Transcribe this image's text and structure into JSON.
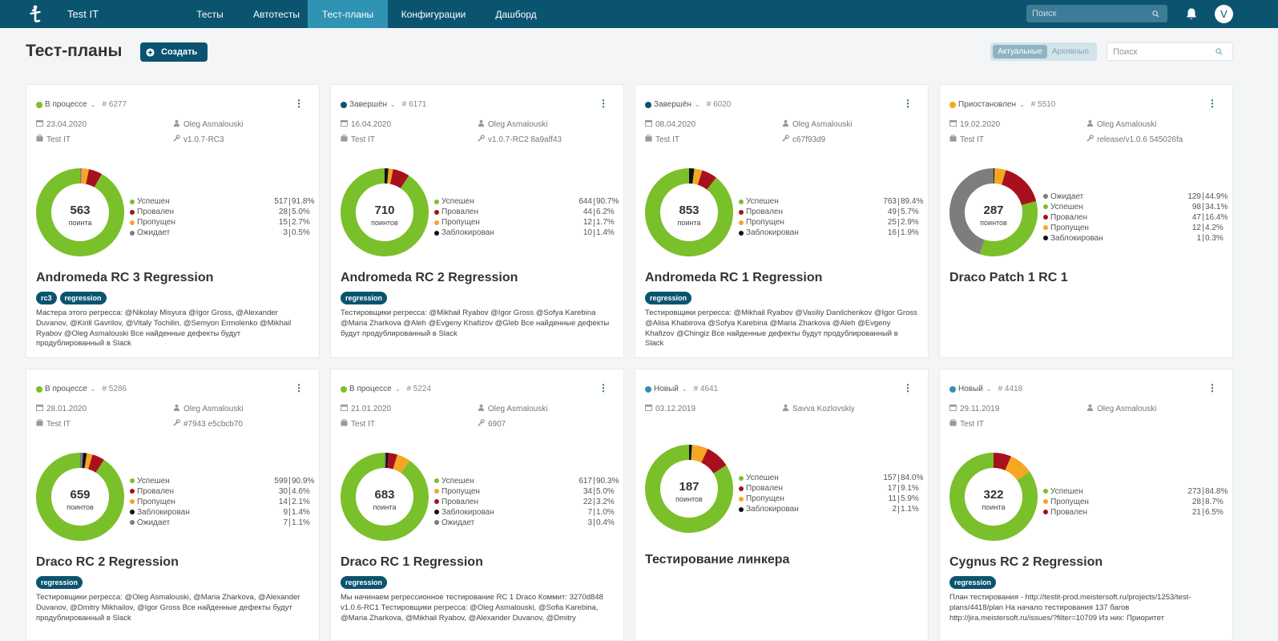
{
  "nav": {
    "brand": "Test IT",
    "items": [
      "Тесты",
      "Автотесты",
      "Тест-планы",
      "Конфигурации",
      "Дашборд"
    ],
    "active_index": 2,
    "search_placeholder": "Поиск",
    "avatar_letter": "V"
  },
  "page": {
    "title": "Тест-планы",
    "create_label": "Создать",
    "toggle": [
      "Актуальные",
      "Архивные"
    ],
    "search_placeholder": "Поиск"
  },
  "colors": {
    "primary": "#0b5470",
    "active_tab": "#2f93b3",
    "passed": "#7ac02b",
    "failed": "#a8101e",
    "skipped": "#f5a623",
    "blocked": "#111111",
    "waiting": "#7d7d7d",
    "status_in_progress": "#7ac02b",
    "status_done": "#0b5470",
    "status_paused": "#f5a623",
    "status_new": "#2f93b3"
  },
  "cards": [
    {
      "status": "В процессе",
      "status_color": "#7ac02b",
      "number": "# 6277",
      "date": "23.04.2020",
      "author": "Oleg Asmalouski",
      "project": "Test IT",
      "build": "v1.0.7-RC3",
      "total": "563",
      "unit": "поинта",
      "stats": [
        {
          "label": "Успешен",
          "count": "517",
          "pct": "91.8%",
          "color": "#7ac02b",
          "value": 517
        },
        {
          "label": "Провален",
          "count": "28",
          "pct": "5.0%",
          "color": "#a8101e",
          "value": 28
        },
        {
          "label": "Пропущен",
          "count": "15",
          "pct": "2.7%",
          "color": "#f5a623",
          "value": 15
        },
        {
          "label": "Ожидает",
          "count": "3",
          "pct": "0.5%",
          "color": "#7d7d7d",
          "value": 3
        }
      ],
      "title": "Andromeda RC 3 Regression",
      "tags": [
        "rc3",
        "regression"
      ],
      "description": "Мастера этого регресса: @Nikolay Misyura @Igor Gross, @Alexander Duvanov, @Kirill Gavrilov, @Vitaly Tochilin, @Semyon Ermolenko @Mikhail Ryabov @Oleg Asmalouski Все найденные дефекты будут продублированный в Slack"
    },
    {
      "status": "Завершён",
      "status_color": "#0b5470",
      "number": "# 6171",
      "date": "16.04.2020",
      "author": "Oleg Asmalouski",
      "project": "Test IT",
      "build": "v1.0.7-RC2 8a9aff43",
      "total": "710",
      "unit": "поинтов",
      "stats": [
        {
          "label": "Успешен",
          "count": "644",
          "pct": "90.7%",
          "color": "#7ac02b",
          "value": 644
        },
        {
          "label": "Провален",
          "count": "44",
          "pct": "6.2%",
          "color": "#a8101e",
          "value": 44
        },
        {
          "label": "Пропущен",
          "count": "12",
          "pct": "1.7%",
          "color": "#f5a623",
          "value": 12
        },
        {
          "label": "Заблокирован",
          "count": "10",
          "pct": "1.4%",
          "color": "#111111",
          "value": 10
        }
      ],
      "title": "Andromeda RC 2 Regression",
      "tags": [
        "regression"
      ],
      "description": "Тестировщики регресса: @Mikhail Ryabov @Igor Gross @Sofya Karebina @Maria Zharkova @Aleh @Evgeny Khafizov @Gleb Все найденные дефекты будут продублированный в Slack"
    },
    {
      "status": "Завершён",
      "status_color": "#0b5470",
      "number": "# 6020",
      "date": "08.04.2020",
      "author": "Oleg Asmalouski",
      "project": "Test IT",
      "build": "c67f93d9",
      "total": "853",
      "unit": "поинта",
      "stats": [
        {
          "label": "Успешен",
          "count": "763",
          "pct": "89.4%",
          "color": "#7ac02b",
          "value": 763
        },
        {
          "label": "Провален",
          "count": "49",
          "pct": "5.7%",
          "color": "#a8101e",
          "value": 49
        },
        {
          "label": "Пропущен",
          "count": "25",
          "pct": "2.9%",
          "color": "#f5a623",
          "value": 25
        },
        {
          "label": "Заблокирован",
          "count": "16",
          "pct": "1.9%",
          "color": "#111111",
          "value": 16
        }
      ],
      "title": "Andromeda RC 1 Regression",
      "tags": [
        "regression"
      ],
      "description": "Тестировщики регресса: @Mikhail Ryabov @Vasiliy Danilchenkov @Igor Gross @Alisa Khabirova @Sofya Karebina @Maria Zharkova @Aleh @Evgeny Khafizov @Chingiz Все найденные дефекты будут продублированный в Slack"
    },
    {
      "status": "Приостановлен",
      "status_color": "#f5a623",
      "number": "# 5510",
      "date": "19.02.2020",
      "author": "Oleg Asmalouski",
      "project": "Test IT",
      "build": "release/v1.0.6 545026fa",
      "total": "287",
      "unit": "поинтов",
      "stats": [
        {
          "label": "Ожидает",
          "count": "129",
          "pct": "44.9%",
          "color": "#7d7d7d",
          "value": 129
        },
        {
          "label": "Успешен",
          "count": "98",
          "pct": "34.1%",
          "color": "#7ac02b",
          "value": 98
        },
        {
          "label": "Провален",
          "count": "47",
          "pct": "16.4%",
          "color": "#a8101e",
          "value": 47
        },
        {
          "label": "Пропущен",
          "count": "12",
          "pct": "4.2%",
          "color": "#f5a623",
          "value": 12
        },
        {
          "label": "Заблокирован",
          "count": "1",
          "pct": "0.3%",
          "color": "#111111",
          "value": 1
        }
      ],
      "title": "Draco Patch 1 RC 1",
      "tags": [],
      "description": ""
    },
    {
      "status": "В процессе",
      "status_color": "#7ac02b",
      "number": "# 5286",
      "date": "28.01.2020",
      "author": "Oleg Asmalouski",
      "project": "Test IT",
      "build": "#7943 e5cbcb70",
      "total": "659",
      "unit": "поинтов",
      "stats": [
        {
          "label": "Успешен",
          "count": "599",
          "pct": "90.9%",
          "color": "#7ac02b",
          "value": 599
        },
        {
          "label": "Провален",
          "count": "30",
          "pct": "4.6%",
          "color": "#a8101e",
          "value": 30
        },
        {
          "label": "Пропущен",
          "count": "14",
          "pct": "2.1%",
          "color": "#f5a623",
          "value": 14
        },
        {
          "label": "Заблокирован",
          "count": "9",
          "pct": "1.4%",
          "color": "#111111",
          "value": 9
        },
        {
          "label": "Ожидает",
          "count": "7",
          "pct": "1.1%",
          "color": "#7d7d7d",
          "value": 7
        }
      ],
      "title": "Draco RC 2 Regression",
      "tags": [
        "regression"
      ],
      "description": "Тестировщики регресса: @Oleg Asmalouski, @Maria Zharkova, @Alexander Duvanov, @Dmitry Mikhailov, @Igor Gross Все найденные дефекты будут продублированный в Slack"
    },
    {
      "status": "В процессе",
      "status_color": "#7ac02b",
      "number": "# 5224",
      "date": "21.01.2020",
      "author": "Oleg Asmalouski",
      "project": "Test IT",
      "build": "6907",
      "total": "683",
      "unit": "поинта",
      "stats": [
        {
          "label": "Успешен",
          "count": "617",
          "pct": "90.3%",
          "color": "#7ac02b",
          "value": 617
        },
        {
          "label": "Пропущен",
          "count": "34",
          "pct": "5.0%",
          "color": "#f5a623",
          "value": 34
        },
        {
          "label": "Провален",
          "count": "22",
          "pct": "3.2%",
          "color": "#a8101e",
          "value": 22
        },
        {
          "label": "Заблокирован",
          "count": "7",
          "pct": "1.0%",
          "color": "#111111",
          "value": 7
        },
        {
          "label": "Ожидает",
          "count": "3",
          "pct": "0.4%",
          "color": "#7d7d7d",
          "value": 3
        }
      ],
      "title": "Draco RC 1 Regression",
      "tags": [
        "regression"
      ],
      "description": "Мы начинаем регрессионное тестирование RC 1 Draco Коммит: 3270d848 v1.0.6-RC1 Тестировщики регресса: @Oleg Asmalouski, @Sofia Karebina, @Maria Zharkova, @Mikhail Ryabov, @Alexander Duvanov, @Dmitry"
    },
    {
      "status": "Новый",
      "status_color": "#2f93b3",
      "number": "# 4641",
      "date": "03.12.2019",
      "author": "Savva Kozlovskiy",
      "project": "",
      "build": "",
      "total": "187",
      "unit": "поинтов",
      "stats": [
        {
          "label": "Успешен",
          "count": "157",
          "pct": "84.0%",
          "color": "#7ac02b",
          "value": 157
        },
        {
          "label": "Провален",
          "count": "17",
          "pct": "9.1%",
          "color": "#a8101e",
          "value": 17
        },
        {
          "label": "Пропущен",
          "count": "11",
          "pct": "5.9%",
          "color": "#f5a623",
          "value": 11
        },
        {
          "label": "Заблокирован",
          "count": "2",
          "pct": "1.1%",
          "color": "#111111",
          "value": 2
        }
      ],
      "title": "Тестирование линкера",
      "tags": [],
      "description": ""
    },
    {
      "status": "Новый",
      "status_color": "#2f93b3",
      "number": "# 4418",
      "date": "29.11.2019",
      "author": "Oleg Asmalouski",
      "project": "Test IT",
      "build": "",
      "total": "322",
      "unit": "поинта",
      "stats": [
        {
          "label": "Успешен",
          "count": "273",
          "pct": "84.8%",
          "color": "#7ac02b",
          "value": 273
        },
        {
          "label": "Пропущен",
          "count": "28",
          "pct": "8.7%",
          "color": "#f5a623",
          "value": 28
        },
        {
          "label": "Провален",
          "count": "21",
          "pct": "6.5%",
          "color": "#a8101e",
          "value": 21
        }
      ],
      "title": "Cygnus RC 2 Regression",
      "tags": [
        "regression"
      ],
      "description": "План тестирования - http://testit-prod.meistersoft.ru/projects/1253/test-plans/4418/plan На начало тестирования 137 багов http://jira.meistersoft.ru/issues/?filter=10709 Из них: Приоритет"
    }
  ]
}
